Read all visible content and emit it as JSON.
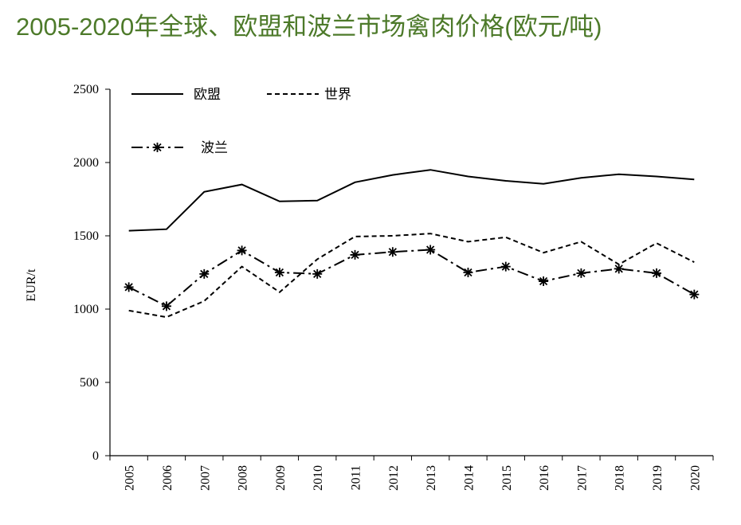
{
  "title": "2005-2020年全球、欧盟和波兰市场禽肉价格(欧元/吨)",
  "chart_data": {
    "type": "line",
    "ylabel": "EUR/t",
    "xlabel": "",
    "ylim": [
      0,
      2500
    ],
    "yticks": [
      0,
      500,
      1000,
      1500,
      2000,
      2500
    ],
    "categories": [
      "2005",
      "2006",
      "2007",
      "2008",
      "2009",
      "2010",
      "2011",
      "2012",
      "2013",
      "2014",
      "2015",
      "2016",
      "2017",
      "2018",
      "2019",
      "2020"
    ],
    "legend_position": "top-left",
    "grid": false,
    "series": [
      {
        "name": "欧盟",
        "style": "solid",
        "marker": "none",
        "values": [
          1535,
          1545,
          1800,
          1850,
          1735,
          1740,
          1865,
          1915,
          1950,
          1905,
          1875,
          1855,
          1895,
          1920,
          1905,
          1885
        ]
      },
      {
        "name": "世界",
        "style": "dashed",
        "marker": "none",
        "values": [
          990,
          945,
          1055,
          1290,
          1115,
          1340,
          1495,
          1500,
          1515,
          1460,
          1490,
          1385,
          1460,
          1305,
          1450,
          1320
        ]
      },
      {
        "name": "波兰",
        "style": "dashdot",
        "marker": "asterisk",
        "values": [
          1150,
          1020,
          1240,
          1400,
          1250,
          1240,
          1370,
          1390,
          1405,
          1250,
          1290,
          1190,
          1245,
          1275,
          1245,
          1100
        ]
      }
    ]
  }
}
